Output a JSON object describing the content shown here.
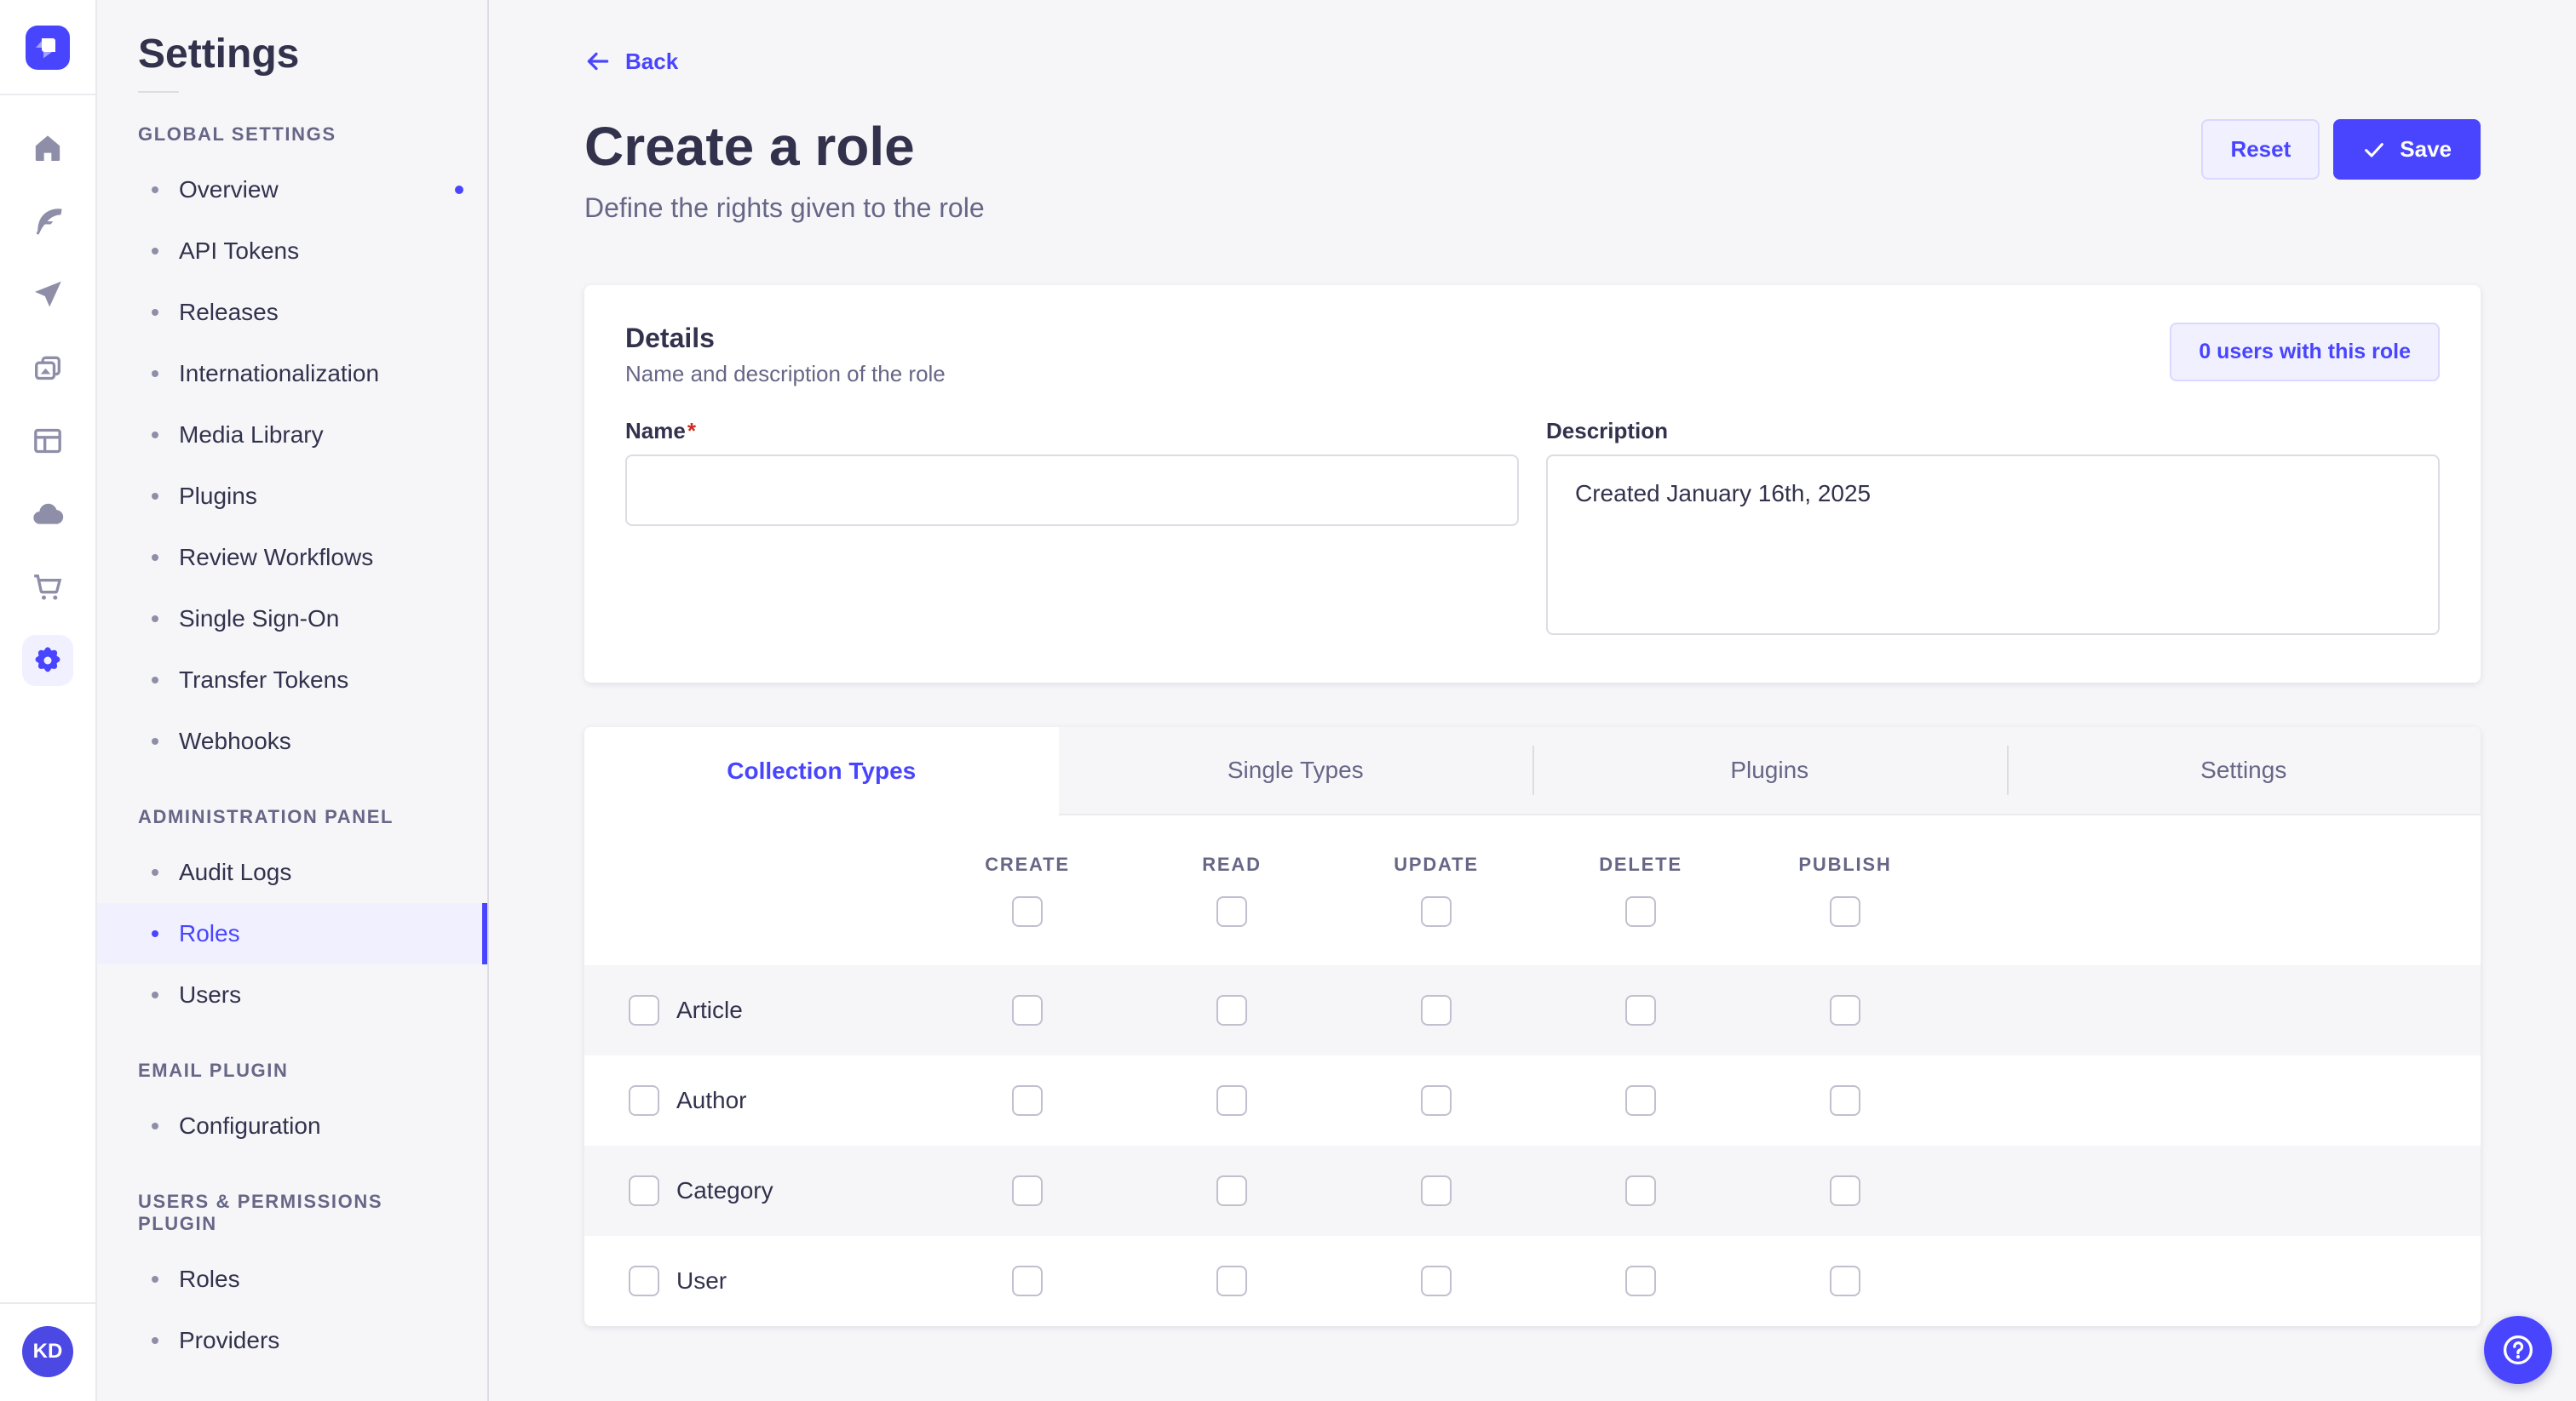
{
  "colors": {
    "primary": "#4945ff",
    "primary_bg": "#f0f0ff",
    "primary_border": "#d9d8ff",
    "neutral_bg": "#f6f6f9",
    "text": "#32324d",
    "text_muted": "#666687",
    "required": "#d02b20"
  },
  "rail": {
    "logo": "strapi-logo",
    "icons": [
      {
        "name": "home-icon",
        "active": false
      },
      {
        "name": "feather-icon",
        "active": false
      },
      {
        "name": "send-icon",
        "active": false
      },
      {
        "name": "media-library-icon",
        "active": false
      },
      {
        "name": "layout-icon",
        "active": false
      },
      {
        "name": "cloud-icon",
        "active": false
      },
      {
        "name": "cart-icon",
        "active": false
      },
      {
        "name": "gear-icon",
        "active": true
      }
    ],
    "user_initials": "KD"
  },
  "sidebar": {
    "title": "Settings",
    "sections": [
      {
        "label": "GLOBAL SETTINGS",
        "items": [
          {
            "label": "Overview",
            "notification": true
          },
          {
            "label": "API Tokens"
          },
          {
            "label": "Releases"
          },
          {
            "label": "Internationalization"
          },
          {
            "label": "Media Library"
          },
          {
            "label": "Plugins"
          },
          {
            "label": "Review Workflows"
          },
          {
            "label": "Single Sign-On"
          },
          {
            "label": "Transfer Tokens"
          },
          {
            "label": "Webhooks"
          }
        ]
      },
      {
        "label": "ADMINISTRATION PANEL",
        "items": [
          {
            "label": "Audit Logs"
          },
          {
            "label": "Roles",
            "active": true
          },
          {
            "label": "Users"
          }
        ]
      },
      {
        "label": "EMAIL PLUGIN",
        "items": [
          {
            "label": "Configuration"
          }
        ]
      },
      {
        "label": "USERS & PERMISSIONS PLUGIN",
        "items": [
          {
            "label": "Roles"
          },
          {
            "label": "Providers"
          }
        ]
      }
    ]
  },
  "header": {
    "back_label": "Back",
    "title": "Create a role",
    "subtitle": "Define the rights given to the role",
    "reset_label": "Reset",
    "save_label": "Save"
  },
  "details": {
    "title": "Details",
    "subtitle": "Name and description of the role",
    "users_button_label": "0 users with this role",
    "name_label": "Name",
    "required_mark": "*",
    "name_value": "",
    "description_label": "Description",
    "description_value": "Created January 16th, 2025"
  },
  "tabs": [
    {
      "label": "Collection Types",
      "active": true
    },
    {
      "label": "Single Types",
      "active": false
    },
    {
      "label": "Plugins",
      "active": false
    },
    {
      "label": "Settings",
      "active": false
    }
  ],
  "permissions": {
    "columns": [
      "CREATE",
      "READ",
      "UPDATE",
      "DELETE",
      "PUBLISH"
    ],
    "rows": [
      "Article",
      "Author",
      "Category",
      "User"
    ],
    "all_unchecked": true
  },
  "fab": {
    "icon": "help-question-icon"
  }
}
